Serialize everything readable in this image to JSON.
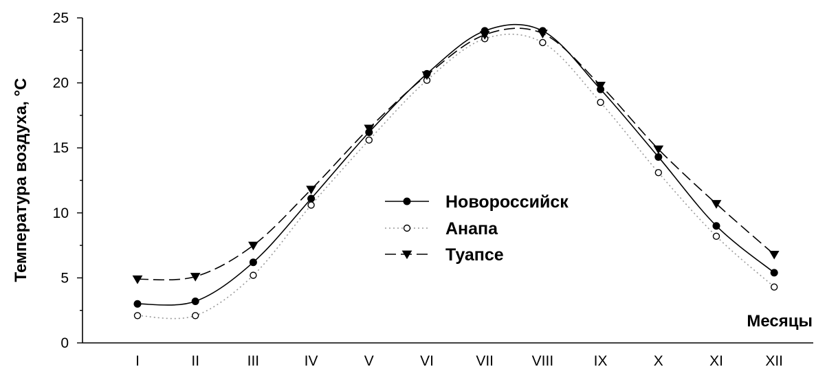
{
  "chart_data": {
    "type": "line",
    "ylabel": "Температура воздуха, °С",
    "xlabel": "Месяцы",
    "categories": [
      "I",
      "II",
      "III",
      "IV",
      "V",
      "VI",
      "VII",
      "VIII",
      "IX",
      "X",
      "XI",
      "XII"
    ],
    "ylim": [
      0,
      25
    ],
    "yticks": [
      0,
      5,
      10,
      15,
      20,
      25
    ],
    "grid": false,
    "legend_position": "center",
    "series": [
      {
        "name": "Новороссийск",
        "marker": "filled-circle",
        "line_style": "solid",
        "color": "#000000",
        "values": [
          3.0,
          3.2,
          6.2,
          11.1,
          16.2,
          20.7,
          24.0,
          24.0,
          19.5,
          14.3,
          9.0,
          5.4
        ]
      },
      {
        "name": "Анапа",
        "marker": "open-circle",
        "line_style": "dotted",
        "color": "#999999",
        "values": [
          2.1,
          2.1,
          5.2,
          10.6,
          15.6,
          20.2,
          23.4,
          23.1,
          18.5,
          13.1,
          8.2,
          4.3
        ]
      },
      {
        "name": "Туапсе",
        "marker": "filled-triangle-down",
        "line_style": "dashed",
        "color": "#000000",
        "values": [
          4.9,
          5.1,
          7.5,
          11.8,
          16.5,
          20.6,
          23.7,
          23.8,
          19.8,
          14.9,
          10.7,
          6.8
        ]
      }
    ]
  }
}
